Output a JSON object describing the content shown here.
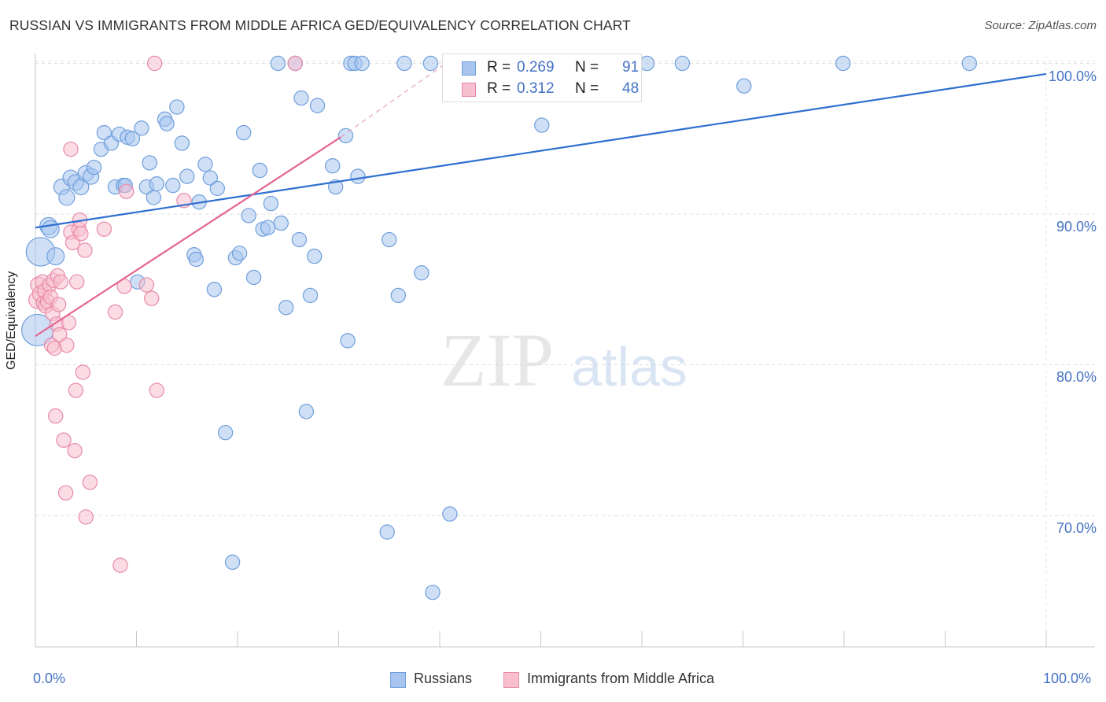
{
  "header": {
    "title": "RUSSIAN VS IMMIGRANTS FROM MIDDLE AFRICA GED/EQUIVALENCY CORRELATION CHART",
    "source": "Source: ZipAtlas.com"
  },
  "watermark": {
    "zip": "ZIP",
    "atlas": "atlas"
  },
  "legend": {
    "rows": [
      {
        "r_label": "R =",
        "r_value": "0.269",
        "n_label": "N =",
        "n_value": "91",
        "color": "#a8c5ef",
        "stroke": "#6f9fdc"
      },
      {
        "r_label": "R =",
        "r_value": "0.312",
        "n_label": "N =",
        "n_value": "48",
        "color": "#f7bfd0",
        "stroke": "#e88aa8"
      }
    ]
  },
  "bottom_legend": {
    "items": [
      {
        "label": "Russians",
        "color": "#a8c5ef",
        "stroke": "#6f9fdc"
      },
      {
        "label": "Immigrants from Middle Africa",
        "color": "#f7bfd0",
        "stroke": "#e88aa8"
      }
    ]
  },
  "axes": {
    "x_left_label": "0.0%",
    "x_right_label": "100.0%",
    "y_label": "GED/Equivalency",
    "y_ticks": [
      "100.0%",
      "90.0%",
      "80.0%",
      "70.0%"
    ]
  },
  "chart_data": {
    "type": "scatter",
    "title": "RUSSIAN VS IMMIGRANTS FROM MIDDLE AFRICA GED/EQUIVALENCY CORRELATION CHART",
    "xlabel": "",
    "ylabel": "GED/Equivalency",
    "xlim": [
      0,
      100
    ],
    "ylim": [
      61,
      102
    ],
    "y_ticks": [
      70,
      80,
      90,
      100
    ],
    "grid": true,
    "legend_position": "top-center",
    "series": [
      {
        "name": "Russians",
        "color": "#6f9fdc",
        "fill": "#a8c5ef",
        "trend": {
          "x0": 0,
          "y0": 89.1,
          "x1": 100,
          "y1": 99.3
        },
        "points": [
          [
            0.2,
            82.3
          ],
          [
            0.5,
            87.5
          ],
          [
            1.3,
            89.2
          ],
          [
            1.5,
            89.0
          ],
          [
            2.0,
            87.2
          ],
          [
            2.6,
            91.8
          ],
          [
            3.1,
            91.1
          ],
          [
            3.5,
            92.4
          ],
          [
            4.0,
            92.1
          ],
          [
            4.5,
            91.8
          ],
          [
            5.0,
            92.7
          ],
          [
            5.5,
            92.5
          ],
          [
            5.8,
            93.1
          ],
          [
            6.5,
            94.3
          ],
          [
            6.8,
            95.4
          ],
          [
            7.5,
            94.7
          ],
          [
            7.9,
            91.8
          ],
          [
            8.3,
            95.3
          ],
          [
            8.7,
            91.9
          ],
          [
            8.9,
            91.9
          ],
          [
            9.1,
            95.1
          ],
          [
            9.6,
            95.0
          ],
          [
            10.1,
            85.5
          ],
          [
            10.5,
            95.7
          ],
          [
            11.0,
            91.8
          ],
          [
            11.3,
            93.4
          ],
          [
            11.7,
            91.1
          ],
          [
            12.0,
            92.0
          ],
          [
            12.8,
            96.3
          ],
          [
            13.0,
            96.0
          ],
          [
            13.6,
            91.9
          ],
          [
            14.0,
            97.1
          ],
          [
            14.5,
            94.7
          ],
          [
            15.0,
            92.5
          ],
          [
            16.2,
            90.8
          ],
          [
            15.7,
            87.3
          ],
          [
            15.9,
            87.0
          ],
          [
            16.8,
            93.3
          ],
          [
            17.3,
            92.4
          ],
          [
            17.7,
            85.0
          ],
          [
            18.0,
            91.7
          ],
          [
            18.8,
            75.5
          ],
          [
            19.5,
            66.9
          ],
          [
            19.8,
            87.1
          ],
          [
            20.2,
            87.4
          ],
          [
            20.6,
            95.4
          ],
          [
            21.1,
            89.9
          ],
          [
            21.6,
            85.8
          ],
          [
            22.2,
            92.9
          ],
          [
            22.5,
            89.0
          ],
          [
            23.0,
            89.1
          ],
          [
            23.3,
            90.7
          ],
          [
            24.3,
            89.4
          ],
          [
            24.8,
            83.8
          ],
          [
            24.0,
            100.0
          ],
          [
            25.7,
            100.0
          ],
          [
            26.1,
            88.3
          ],
          [
            26.3,
            97.7
          ],
          [
            26.8,
            76.9
          ],
          [
            27.2,
            84.6
          ],
          [
            27.6,
            87.2
          ],
          [
            27.9,
            97.2
          ],
          [
            29.4,
            93.2
          ],
          [
            29.7,
            91.8
          ],
          [
            30.7,
            95.2
          ],
          [
            30.9,
            81.6
          ],
          [
            31.9,
            92.5
          ],
          [
            31.2,
            100.0
          ],
          [
            31.6,
            100.0
          ],
          [
            32.3,
            100.0
          ],
          [
            35.0,
            88.3
          ],
          [
            34.8,
            68.9
          ],
          [
            35.9,
            84.6
          ],
          [
            36.5,
            100.0
          ],
          [
            38.2,
            86.1
          ],
          [
            39.1,
            100.0
          ],
          [
            41.0,
            70.1
          ],
          [
            41.0,
            100.0
          ],
          [
            39.3,
            64.9
          ],
          [
            43.0,
            100.0
          ],
          [
            46.3,
            100.0
          ],
          [
            50.1,
            95.9
          ],
          [
            50.9,
            100.0
          ],
          [
            52.7,
            100.0
          ],
          [
            54.7,
            100.0
          ],
          [
            55.1,
            100.0
          ],
          [
            60.5,
            100.0
          ],
          [
            64.0,
            100.0
          ],
          [
            70.1,
            98.5
          ],
          [
            79.9,
            100.0
          ],
          [
            92.4,
            100.0
          ]
        ],
        "sizes": [
          22,
          20,
          12,
          12,
          12,
          11,
          11,
          11,
          11,
          11,
          11,
          11,
          10,
          10,
          10,
          10,
          10,
          10,
          10,
          10,
          10,
          10,
          10,
          10,
          10,
          10,
          10,
          10,
          10,
          10,
          10,
          10,
          10,
          10,
          10,
          10,
          10,
          10,
          10,
          10,
          10,
          10,
          10,
          10,
          10,
          10,
          10,
          10,
          10,
          10,
          10,
          10,
          10,
          10,
          10,
          10,
          10,
          10,
          10,
          10,
          10,
          10,
          10,
          10,
          10,
          10,
          10,
          10,
          10,
          10,
          10,
          10,
          10,
          10,
          10,
          10,
          10,
          10,
          10,
          10,
          10,
          10,
          10,
          10,
          10,
          10,
          10,
          10,
          10,
          10,
          10
        ]
      },
      {
        "name": "Immigrants from Middle Africa",
        "color": "#e88aa8",
        "fill": "#f7bfd0",
        "trend": {
          "x0": 0,
          "y0": 81.9,
          "x1": 30.2,
          "y1": 95.1
        },
        "trend_dashed": {
          "x0": 30.2,
          "y0": 95.1,
          "x1": 40.6,
          "y1": 100.0
        },
        "points": [
          [
            0.2,
            84.3
          ],
          [
            0.3,
            85.3
          ],
          [
            0.5,
            84.7
          ],
          [
            0.7,
            85.5
          ],
          [
            0.8,
            84.1
          ],
          [
            0.9,
            84.9
          ],
          [
            1.0,
            83.9
          ],
          [
            1.2,
            84.2
          ],
          [
            1.4,
            85.3
          ],
          [
            1.5,
            84.5
          ],
          [
            1.6,
            81.3
          ],
          [
            1.7,
            83.4
          ],
          [
            1.8,
            85.6
          ],
          [
            1.9,
            81.1
          ],
          [
            2.0,
            76.6
          ],
          [
            2.1,
            82.7
          ],
          [
            2.2,
            85.9
          ],
          [
            2.3,
            84.0
          ],
          [
            2.4,
            82.0
          ],
          [
            2.5,
            85.5
          ],
          [
            2.8,
            75.0
          ],
          [
            3.0,
            71.5
          ],
          [
            3.1,
            81.3
          ],
          [
            3.3,
            82.8
          ],
          [
            3.5,
            94.3
          ],
          [
            3.5,
            88.8
          ],
          [
            3.7,
            88.1
          ],
          [
            3.9,
            74.3
          ],
          [
            4.0,
            78.3
          ],
          [
            4.1,
            85.5
          ],
          [
            4.3,
            89.0
          ],
          [
            4.4,
            89.6
          ],
          [
            4.5,
            88.7
          ],
          [
            4.7,
            79.5
          ],
          [
            4.9,
            87.6
          ],
          [
            5.0,
            69.9
          ],
          [
            5.4,
            72.2
          ],
          [
            6.8,
            89.0
          ],
          [
            7.9,
            83.5
          ],
          [
            8.4,
            66.7
          ],
          [
            8.8,
            85.2
          ],
          [
            9.0,
            91.5
          ],
          [
            11.0,
            85.3
          ],
          [
            11.5,
            84.4
          ],
          [
            12.0,
            78.3
          ],
          [
            14.7,
            90.9
          ],
          [
            11.8,
            100.0
          ],
          [
            25.7,
            100.0
          ]
        ],
        "sizes": [
          12,
          11,
          11,
          10,
          10,
          10,
          10,
          10,
          10,
          10,
          10,
          10,
          10,
          10,
          10,
          10,
          10,
          10,
          10,
          10,
          10,
          10,
          10,
          10,
          10,
          10,
          10,
          10,
          10,
          10,
          10,
          10,
          10,
          10,
          10,
          10,
          10,
          10,
          10,
          10,
          10,
          10,
          10,
          10,
          10,
          10,
          10,
          10
        ]
      }
    ]
  }
}
